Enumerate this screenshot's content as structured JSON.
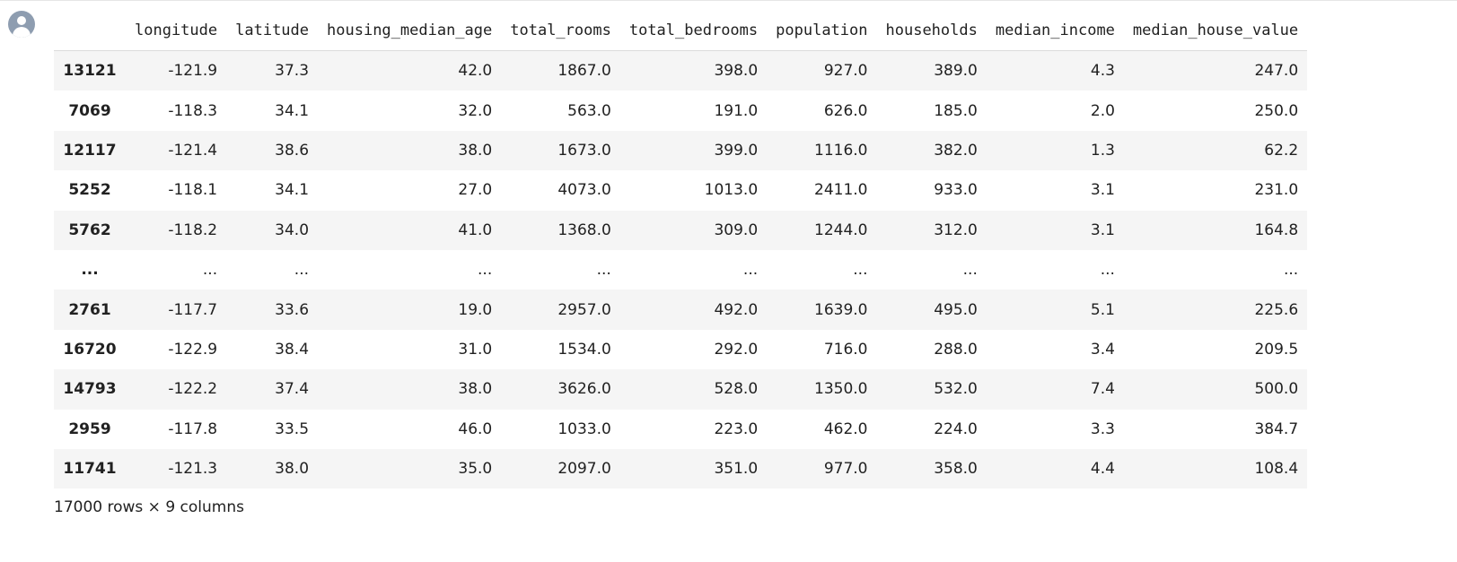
{
  "output": {
    "columns": [
      "",
      "longitude",
      "latitude",
      "housing_median_age",
      "total_rooms",
      "total_bedrooms",
      "population",
      "households",
      "median_income",
      "median_house_value"
    ],
    "rows": [
      {
        "index": "13121",
        "cells": [
          "-121.9",
          "37.3",
          "42.0",
          "1867.0",
          "398.0",
          "927.0",
          "389.0",
          "4.3",
          "247.0"
        ]
      },
      {
        "index": "7069",
        "cells": [
          "-118.3",
          "34.1",
          "32.0",
          "563.0",
          "191.0",
          "626.0",
          "185.0",
          "2.0",
          "250.0"
        ]
      },
      {
        "index": "12117",
        "cells": [
          "-121.4",
          "38.6",
          "38.0",
          "1673.0",
          "399.0",
          "1116.0",
          "382.0",
          "1.3",
          "62.2"
        ]
      },
      {
        "index": "5252",
        "cells": [
          "-118.1",
          "34.1",
          "27.0",
          "4073.0",
          "1013.0",
          "2411.0",
          "933.0",
          "3.1",
          "231.0"
        ]
      },
      {
        "index": "5762",
        "cells": [
          "-118.2",
          "34.0",
          "41.0",
          "1368.0",
          "309.0",
          "1244.0",
          "312.0",
          "3.1",
          "164.8"
        ]
      },
      {
        "index": "...",
        "cells": [
          "...",
          "...",
          "...",
          "...",
          "...",
          "...",
          "...",
          "...",
          "..."
        ]
      },
      {
        "index": "2761",
        "cells": [
          "-117.7",
          "33.6",
          "19.0",
          "2957.0",
          "492.0",
          "1639.0",
          "495.0",
          "5.1",
          "225.6"
        ]
      },
      {
        "index": "16720",
        "cells": [
          "-122.9",
          "38.4",
          "31.0",
          "1534.0",
          "292.0",
          "716.0",
          "288.0",
          "3.4",
          "209.5"
        ]
      },
      {
        "index": "14793",
        "cells": [
          "-122.2",
          "37.4",
          "38.0",
          "3626.0",
          "528.0",
          "1350.0",
          "532.0",
          "7.4",
          "500.0"
        ]
      },
      {
        "index": "2959",
        "cells": [
          "-117.8",
          "33.5",
          "46.0",
          "1033.0",
          "223.0",
          "462.0",
          "224.0",
          "3.3",
          "384.7"
        ]
      },
      {
        "index": "11741",
        "cells": [
          "-121.3",
          "38.0",
          "35.0",
          "2097.0",
          "351.0",
          "977.0",
          "358.0",
          "4.4",
          "108.4"
        ]
      }
    ],
    "summary": "17000 rows × 9 columns"
  },
  "icons": {
    "avatar": "user-avatar-icon"
  },
  "colors": {
    "avatar": "#8e9db0",
    "row_stripe": "#f5f5f5"
  }
}
